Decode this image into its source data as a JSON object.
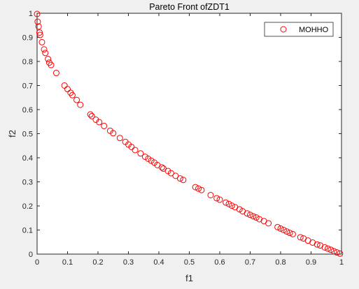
{
  "chart_data": {
    "type": "scatter",
    "title": "Pareto Front ofZDT1",
    "xlabel": "f1",
    "ylabel": "f2",
    "xlim": [
      0,
      1
    ],
    "ylim": [
      0,
      1
    ],
    "xticks": [
      "0",
      "0.1",
      "0.2",
      "0.3",
      "0.4",
      "0.5",
      "0.6",
      "0.7",
      "0.8",
      "0.9",
      "1"
    ],
    "yticks": [
      "0",
      "0.1",
      "0.2",
      "0.3",
      "0.4",
      "0.5",
      "0.6",
      "0.7",
      "0.8",
      "0.9",
      "1"
    ],
    "grid": false,
    "legend_position": "top-right",
    "series": [
      {
        "name": "MOHHO",
        "marker": "open-circle",
        "color": "#ff0000",
        "x": [
          0.0,
          0.002,
          0.005,
          0.008,
          0.01,
          0.016,
          0.023,
          0.027,
          0.036,
          0.04,
          0.046,
          0.063,
          0.09,
          0.1,
          0.11,
          0.116,
          0.13,
          0.142,
          0.175,
          0.18,
          0.193,
          0.204,
          0.22,
          0.24,
          0.25,
          0.272,
          0.29,
          0.3,
          0.31,
          0.322,
          0.34,
          0.355,
          0.365,
          0.375,
          0.385,
          0.395,
          0.41,
          0.415,
          0.43,
          0.44,
          0.455,
          0.47,
          0.48,
          0.52,
          0.53,
          0.54,
          0.57,
          0.59,
          0.6,
          0.62,
          0.63,
          0.64,
          0.65,
          0.665,
          0.675,
          0.69,
          0.7,
          0.71,
          0.72,
          0.73,
          0.745,
          0.76,
          0.79,
          0.8,
          0.81,
          0.82,
          0.83,
          0.84,
          0.865,
          0.875,
          0.89,
          0.905,
          0.92,
          0.93,
          0.945,
          0.955,
          0.965,
          0.975,
          0.985,
          0.995
        ],
        "y": [
          0.997,
          0.965,
          0.945,
          0.92,
          0.91,
          0.88,
          0.85,
          0.835,
          0.81,
          0.795,
          0.785,
          0.752,
          0.7,
          0.685,
          0.67,
          0.66,
          0.64,
          0.62,
          0.58,
          0.573,
          0.558,
          0.548,
          0.532,
          0.512,
          0.502,
          0.482,
          0.466,
          0.455,
          0.445,
          0.432,
          0.418,
          0.404,
          0.396,
          0.388,
          0.38,
          0.37,
          0.36,
          0.355,
          0.345,
          0.336,
          0.325,
          0.314,
          0.308,
          0.278,
          0.272,
          0.266,
          0.245,
          0.232,
          0.226,
          0.214,
          0.208,
          0.201,
          0.195,
          0.186,
          0.178,
          0.169,
          0.163,
          0.157,
          0.152,
          0.145,
          0.137,
          0.128,
          0.112,
          0.106,
          0.1,
          0.094,
          0.088,
          0.083,
          0.07,
          0.065,
          0.056,
          0.048,
          0.04,
          0.036,
          0.028,
          0.023,
          0.018,
          0.012,
          0.007,
          0.002
        ]
      }
    ]
  }
}
